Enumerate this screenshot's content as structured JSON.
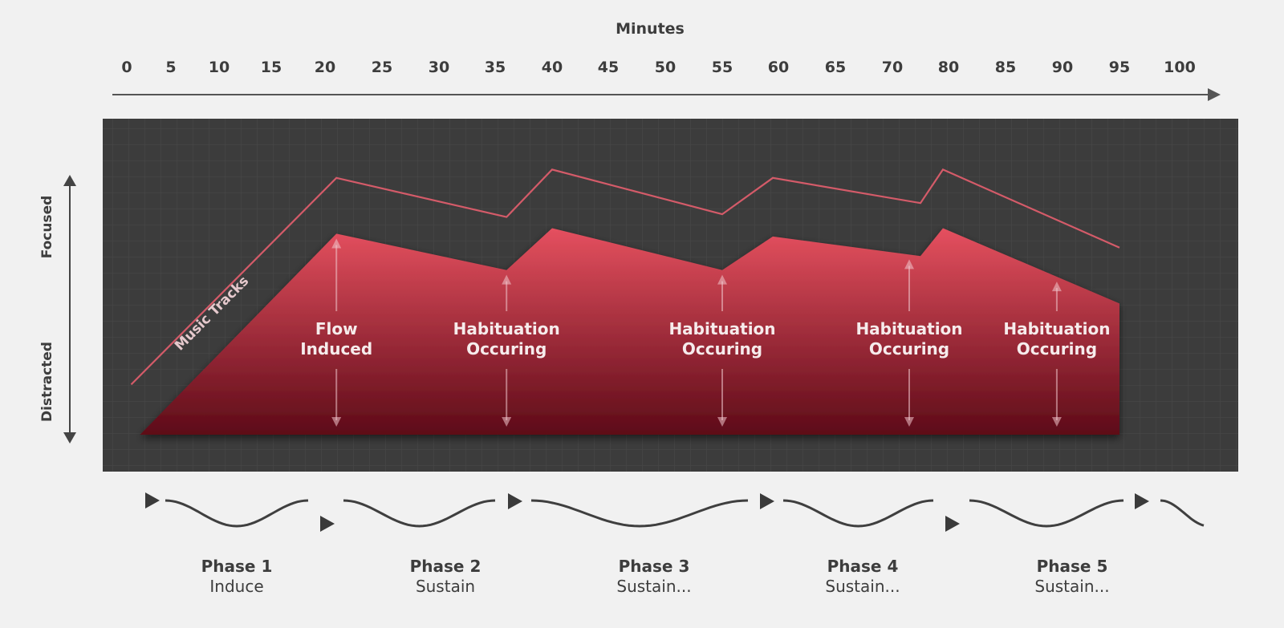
{
  "chart_data": {
    "type": "area",
    "title": "",
    "xlabel": "Minutes",
    "x_ticks": [
      0,
      5,
      10,
      15,
      20,
      25,
      30,
      35,
      40,
      45,
      50,
      55,
      60,
      65,
      70,
      80,
      85,
      90,
      95,
      100
    ],
    "y_labels": {
      "top": "Focused",
      "bottom": "Distracted"
    },
    "series": [
      {
        "name": "Music Tracks",
        "points": [
          [
            0.5,
            0.18
          ],
          [
            21,
            0.92
          ],
          [
            36,
            0.78
          ],
          [
            40,
            0.95
          ],
          [
            55,
            0.79
          ],
          [
            59.5,
            0.92
          ],
          [
            75,
            0.83
          ],
          [
            79,
            0.95
          ],
          [
            95,
            0.67
          ]
        ]
      },
      {
        "name": "",
        "points": [
          [
            1.5,
            0.0
          ],
          [
            21,
            0.72
          ],
          [
            36,
            0.59
          ],
          [
            40,
            0.74
          ],
          [
            55,
            0.59
          ],
          [
            59.5,
            0.71
          ],
          [
            75,
            0.64
          ],
          [
            79,
            0.74
          ],
          [
            95,
            0.47
          ]
        ]
      }
    ],
    "annotations": [
      {
        "x": 21,
        "lines": [
          "Flow",
          "Induced"
        ]
      },
      {
        "x": 36,
        "lines": [
          "Habituation",
          "Occuring"
        ]
      },
      {
        "x": 55,
        "lines": [
          "Habituation",
          "Occuring"
        ]
      },
      {
        "x": 73,
        "lines": [
          "Habituation",
          "Occuring"
        ]
      },
      {
        "x": 89.5,
        "lines": [
          "Habituation",
          "Occuring"
        ]
      }
    ],
    "phases": [
      {
        "name": "Phase 1",
        "desc": "Induce"
      },
      {
        "name": "Phase 2",
        "desc": "Sustain"
      },
      {
        "name": "Phase 3",
        "desc": "Sustain..."
      },
      {
        "name": "Phase 4",
        "desc": "Sustain..."
      },
      {
        "name": "Phase 5",
        "desc": "Sustain..."
      }
    ],
    "colors": {
      "panel": "#3d3d3d",
      "area_top": "#e5505f",
      "area_bottom": "#5d0b18",
      "line": "#d45b69"
    }
  }
}
